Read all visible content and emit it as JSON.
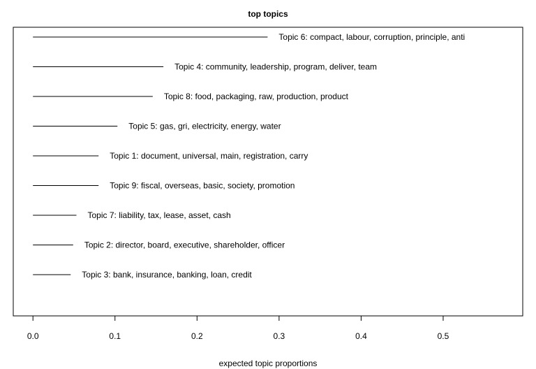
{
  "chart_data": {
    "type": "bar",
    "orientation": "horizontal",
    "title": "top topics",
    "xlabel": "expected topic proportions",
    "ylabel": "",
    "xlim": [
      -0.024,
      0.597
    ],
    "x_ticks": [
      0.0,
      0.1,
      0.2,
      0.3,
      0.4,
      0.5
    ],
    "x_tick_labels": [
      "0.0",
      "0.1",
      "0.2",
      "0.3",
      "0.4",
      "0.5"
    ],
    "grid": false,
    "series": [
      {
        "name": "expected topic proportions",
        "items": [
          {
            "label": "Topic 6: compact, labour, corruption, principle, anti",
            "value": 0.286
          },
          {
            "label": "Topic 4: community, leadership, program, deliver, team",
            "value": 0.159
          },
          {
            "label": "Topic 8: food, packaging, raw, production, product",
            "value": 0.146
          },
          {
            "label": "Topic 5: gas, gri, electricity, energy, water",
            "value": 0.103
          },
          {
            "label": "Topic 1: document, universal, main, registration, carry",
            "value": 0.08
          },
          {
            "label": "Topic 9: fiscal, overseas, basic, society, promotion",
            "value": 0.08
          },
          {
            "label": "Topic 7: liability, tax, lease, asset, cash",
            "value": 0.053
          },
          {
            "label": "Topic 2: director, board, executive, shareholder, officer",
            "value": 0.049
          },
          {
            "label": "Topic 3: bank, insurance, banking, loan, credit",
            "value": 0.046
          }
        ]
      }
    ]
  },
  "colors": {
    "line": "#000000",
    "background": "#ffffff"
  }
}
